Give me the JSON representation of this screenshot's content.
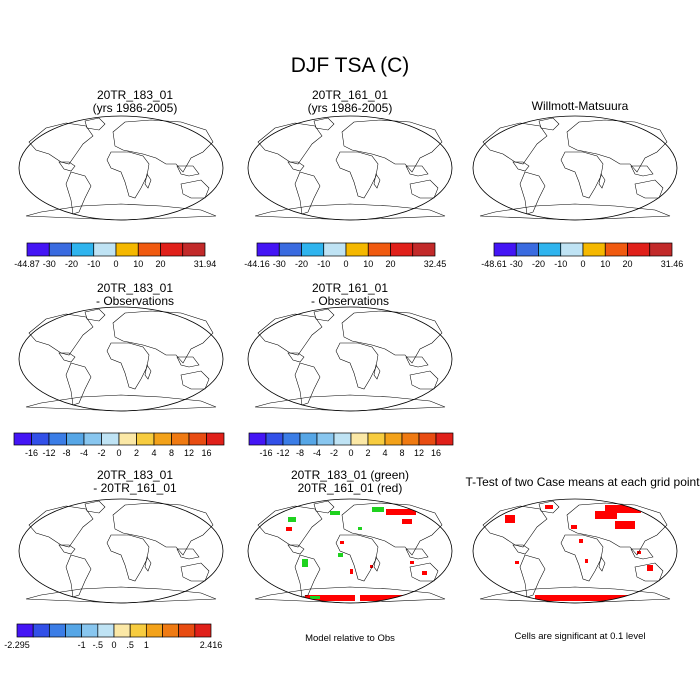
{
  "page_title": "DJF TSA (C)",
  "colors": {
    "abs_scale": [
      "#4415f5",
      "#3a6be0",
      "#2fb4ee",
      "#bfe3f4",
      "#f5b800",
      "#f05a10",
      "#e0201a",
      "#c22a2a"
    ],
    "diff_scale": [
      "#4415f5",
      "#3250e8",
      "#3b7de6",
      "#56a6e6",
      "#88c6ef",
      "#bfe3f4",
      "#fbe8a6",
      "#f7cc3f",
      "#f3a21a",
      "#ef7a12",
      "#e84c12",
      "#e0201a",
      "#c21d2a"
    ],
    "ocean": "#ffffff",
    "model_green": "#1fd21f",
    "obs_red": "#ff0000"
  },
  "panels": [
    {
      "title_lines": [
        "20TR_183_01",
        "(yrs 1986-2005)"
      ],
      "map": "absolute"
    },
    {
      "title_lines": [
        "20TR_161_01",
        "(yrs 1986-2005)"
      ],
      "map": "absolute"
    },
    {
      "title_lines": [
        "Willmott-Matsuura"
      ],
      "map": "absolute"
    },
    {
      "title_lines": [
        "20TR_183_01",
        "- Observations"
      ],
      "map": "difference"
    },
    {
      "title_lines": [
        "20TR_161_01",
        "- Observations"
      ],
      "map": "difference"
    },
    {
      "title_lines": [
        "20TR_183_01",
        "- 20TR_161_01"
      ],
      "map": "model-difference"
    },
    {
      "title_lines": [
        "20TR_183_01 (green)",
        "20TR_161_01 (red)"
      ],
      "map": "model-relative"
    },
    {
      "title_lines": [
        "T-Test of two Case means at each grid point"
      ],
      "map": "significance"
    }
  ],
  "colorbars": [
    {
      "labels": [
        "-44.87",
        "-30",
        "-20",
        "-10",
        "0",
        "10",
        "20",
        "31.94"
      ]
    },
    {
      "labels": [
        "-44.16",
        "-30",
        "-20",
        "-10",
        "0",
        "10",
        "20",
        "32.45"
      ]
    },
    {
      "labels": [
        "-48.61",
        "-30",
        "-20",
        "-10",
        "0",
        "10",
        "20",
        "31.46"
      ]
    },
    {
      "labels": [
        "-16",
        "-12",
        "-8",
        "-4",
        "-2",
        "0",
        "2",
        "4",
        "8",
        "12",
        "16"
      ]
    },
    {
      "labels": [
        "-16",
        "-12",
        "-8",
        "-4",
        "-2",
        "0",
        "2",
        "4",
        "8",
        "12",
        "16"
      ]
    },
    {
      "labels": [
        "-2.295",
        "-1",
        "-.5",
        "0",
        ".5",
        "1",
        "2.416"
      ]
    }
  ],
  "notes": {
    "model_relative": "Model relative to Obs",
    "significance": "Cells are significant at 0.1 level"
  },
  "chart_data": {
    "type": "heatmap",
    "title": "DJF TSA (C)",
    "variable": "TSA",
    "season": "DJF",
    "units": "C",
    "maps": [
      {
        "name": "20TR_183_01 (yrs 1986-2005)",
        "min": -44.87,
        "max": 31.94,
        "levels": [
          -30,
          -20,
          -10,
          0,
          10,
          20
        ]
      },
      {
        "name": "20TR_161_01 (yrs 1986-2005)",
        "min": -44.16,
        "max": 32.45,
        "levels": [
          -30,
          -20,
          -10,
          0,
          10,
          20
        ]
      },
      {
        "name": "Willmott-Matsuura",
        "min": -48.61,
        "max": 31.46,
        "levels": [
          -30,
          -20,
          -10,
          0,
          10,
          20
        ]
      },
      {
        "name": "20TR_183_01 - Observations",
        "levels": [
          -16,
          -12,
          -8,
          -4,
          -2,
          0,
          2,
          4,
          8,
          12,
          16
        ]
      },
      {
        "name": "20TR_161_01 - Observations",
        "levels": [
          -16,
          -12,
          -8,
          -4,
          -2,
          0,
          2,
          4,
          8,
          12,
          16
        ]
      },
      {
        "name": "20TR_183_01 - 20TR_161_01",
        "min": -2.295,
        "max": 2.416,
        "levels": [
          -1,
          -0.5,
          0,
          0.5,
          1
        ]
      },
      {
        "name": "20TR_183_01 (green) / 20TR_161_01 (red)",
        "legend": [
          "20TR_183_01 (green)",
          "20TR_161_01 (red)"
        ]
      },
      {
        "name": "T-Test of two Case means at each grid point",
        "significance_level": 0.1
      }
    ]
  }
}
